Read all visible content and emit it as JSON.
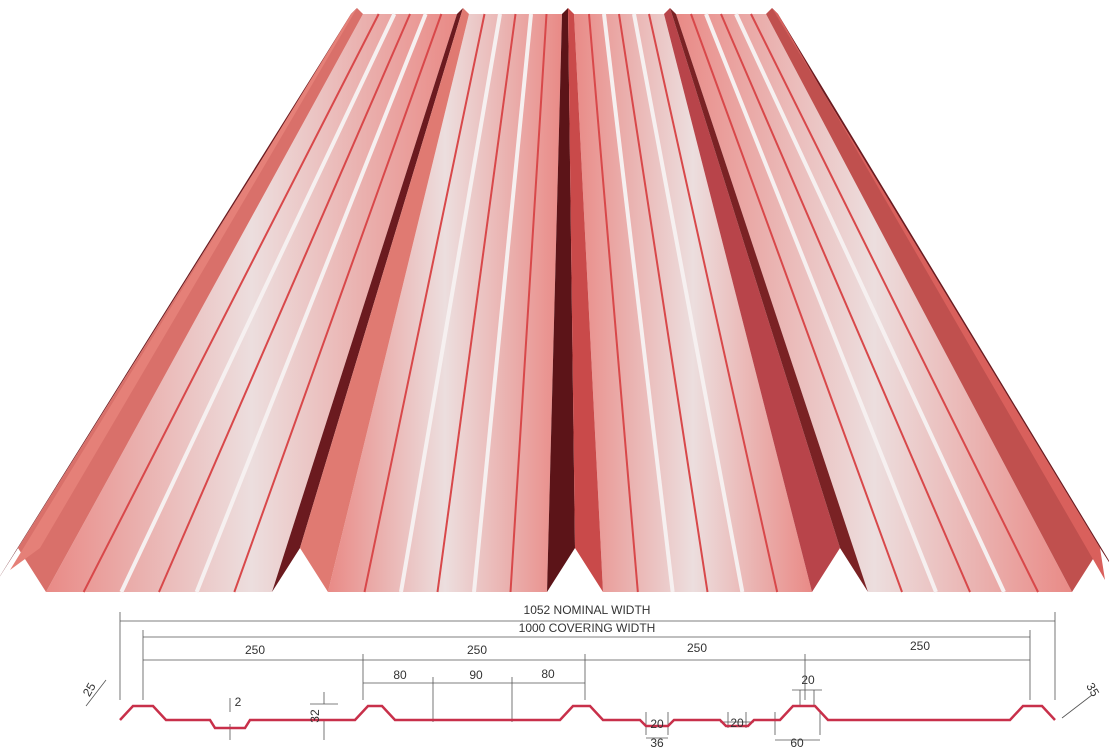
{
  "dimensions": {
    "nominal_width": "1052 NOMINAL WIDTH",
    "covering_width": "1000 COVERING WIDTH",
    "rib_pitches": [
      "250",
      "250",
      "250",
      "250"
    ],
    "pan_spacings": [
      "80",
      "90",
      "80"
    ],
    "stiffener_depth": "2",
    "rib_height": "32",
    "left_edge": "25",
    "right_edge": "35",
    "stiffener_widths": [
      "20",
      "20"
    ],
    "rib_top_width": "20",
    "stiffener_base": "36",
    "rib_base": "60"
  }
}
